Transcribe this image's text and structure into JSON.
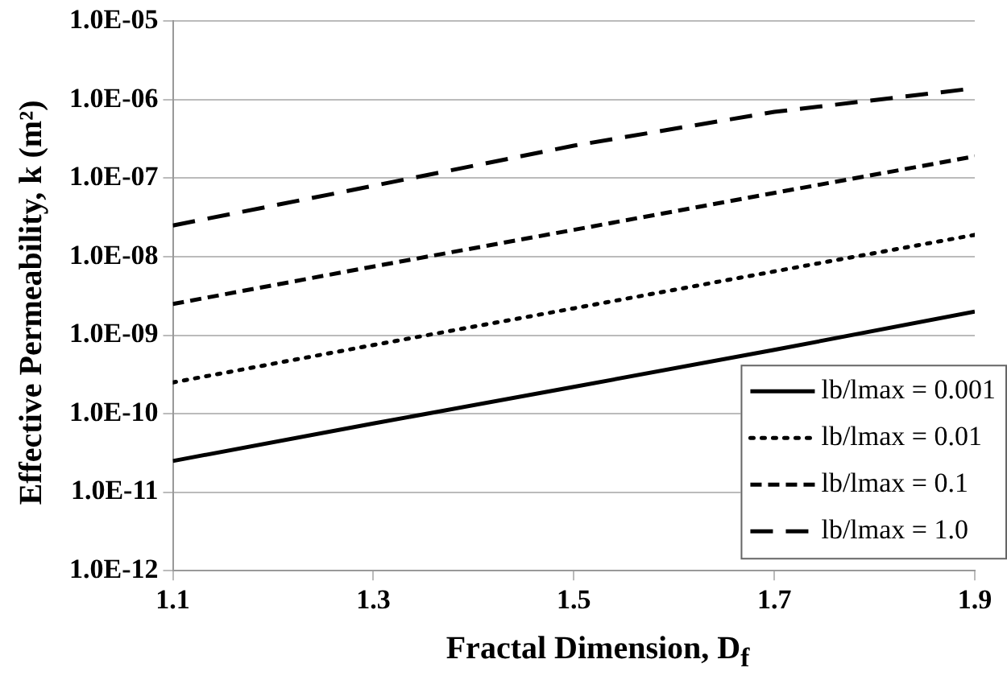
{
  "chart_data": {
    "type": "line",
    "xlabel": "Fractal Dimension, D$_{f}$",
    "ylabel": "Effective Permeability, k (m²)",
    "x": [
      1.1,
      1.3,
      1.5,
      1.7,
      1.9
    ],
    "series": [
      {
        "name": "lb/lmax = 0.001",
        "color": "#000000",
        "line_style": "solid",
        "values": [
          2.5e-11,
          7.5e-11,
          2.2e-10,
          6.5e-10,
          2e-09
        ]
      },
      {
        "name": "lb/lmax = 0.01",
        "color": "#000000",
        "line_style": "dotted",
        "values": [
          2.5e-10,
          7.5e-10,
          2.2e-09,
          6.5e-09,
          1.9e-08
        ]
      },
      {
        "name": "lb/lmax = 0.1",
        "color": "#000000",
        "line_style": "dashed",
        "values": [
          2.5e-09,
          7.5e-09,
          2.2e-08,
          6.5e-08,
          1.9e-07
        ]
      },
      {
        "name": "lb/lmax = 1.0",
        "color": "#000000",
        "line_style": "dashed",
        "values": [
          2.5e-08,
          8e-08,
          2.6e-07,
          7e-07,
          1.4e-06
        ]
      }
    ],
    "xlim": [
      1.1,
      1.9
    ],
    "xticks": [
      1.1,
      1.3,
      1.5,
      1.7,
      1.9
    ],
    "ylim": [
      1e-12,
      1e-05
    ],
    "yticks": [
      {
        "value": 1e-12,
        "label": "1.0E-12"
      },
      {
        "value": 1e-11,
        "label": "1.0E-11"
      },
      {
        "value": 1e-10,
        "label": "1.0E-10"
      },
      {
        "value": 1e-09,
        "label": "1.0E-09"
      },
      {
        "value": 1e-08,
        "label": "1.0E-08"
      },
      {
        "value": 1e-07,
        "label": "1.0E-07"
      },
      {
        "value": 1e-06,
        "label": "1.0E-06"
      },
      {
        "value": 1e-05,
        "label": "1.0E-05"
      }
    ],
    "log": "y",
    "grid": "y",
    "legend": "bottom right",
    "marker": "none"
  }
}
